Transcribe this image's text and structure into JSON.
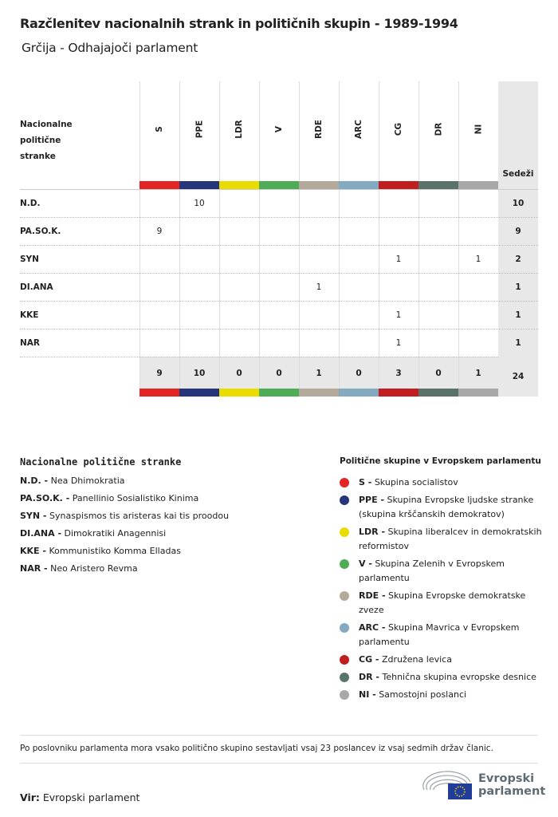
{
  "title": "Razčlenitev nacionalnih strank in političnih skupin - 1989-1994",
  "subtitle": "Grčija - Odhajajoči parlament",
  "table": {
    "row_header": "Nacionalne politične stranke",
    "seats_header": "Sedeži",
    "groups": [
      {
        "code": "S",
        "color": "#e32624"
      },
      {
        "code": "PPE",
        "color": "#27357b"
      },
      {
        "code": "LDR",
        "color": "#ebdc00"
      },
      {
        "code": "V",
        "color": "#4fac56"
      },
      {
        "code": "RDE",
        "color": "#b3aa9c"
      },
      {
        "code": "ARC",
        "color": "#83aac0"
      },
      {
        "code": "CG",
        "color": "#c21d1f"
      },
      {
        "code": "DR",
        "color": "#59736a"
      },
      {
        "code": "NI",
        "color": "#a8a8a8"
      }
    ],
    "rows": [
      {
        "party": "N.D.",
        "values": [
          "",
          "10",
          "",
          "",
          "",
          "",
          "",
          "",
          ""
        ],
        "seats": "10"
      },
      {
        "party": "PA.SO.K.",
        "values": [
          "9",
          "",
          "",
          "",
          "",
          "",
          "",
          "",
          ""
        ],
        "seats": "9"
      },
      {
        "party": "SYN",
        "values": [
          "",
          "",
          "",
          "",
          "",
          "",
          "1",
          "",
          "1"
        ],
        "seats": "2"
      },
      {
        "party": "DI.ANA",
        "values": [
          "",
          "",
          "",
          "",
          "1",
          "",
          "",
          "",
          ""
        ],
        "seats": "1"
      },
      {
        "party": "KKE",
        "values": [
          "",
          "",
          "",
          "",
          "",
          "",
          "1",
          "",
          ""
        ],
        "seats": "1"
      },
      {
        "party": "NAR",
        "values": [
          "",
          "",
          "",
          "",
          "",
          "",
          "1",
          "",
          ""
        ],
        "seats": "1"
      }
    ],
    "totals": [
      "9",
      "10",
      "0",
      "0",
      "1",
      "0",
      "3",
      "0",
      "1"
    ],
    "grand_total": "24"
  },
  "legend_parties": {
    "title": "Nacionalne politične stranke",
    "items": [
      {
        "code": "N.D. -",
        "name": "Nea Dhimokratia"
      },
      {
        "code": "PA.SO.K. -",
        "name": "Panellinio Sosialistiko Kinima"
      },
      {
        "code": "SYN -",
        "name": "Synaspismos tis aristeras kai tis proodou"
      },
      {
        "code": "DI.ANA -",
        "name": "Dimokratiki Anagennisi"
      },
      {
        "code": "KKE -",
        "name": "Kommunistiko Komma Elladas"
      },
      {
        "code": "NAR -",
        "name": "Neo Aristero Revma"
      }
    ]
  },
  "legend_groups": {
    "title": "Politične skupine v Evropskem parlamentu",
    "items": [
      {
        "code": "S -",
        "name": "Skupina socialistov"
      },
      {
        "code": "PPE -",
        "name": "Skupina Evropske ljudske stranke (skupina krščanskih demokratov)"
      },
      {
        "code": "LDR -",
        "name": "Skupina liberalcev in demokratskih reformistov"
      },
      {
        "code": "V -",
        "name": "Skupina Zelenih v Evropskem parlamentu"
      },
      {
        "code": "RDE -",
        "name": "Skupina Evropske demokratske zveze"
      },
      {
        "code": "ARC -",
        "name": "Skupina Mavrica v Evropskem parlamentu"
      },
      {
        "code": "CG -",
        "name": "Združena levica"
      },
      {
        "code": "DR -",
        "name": "Tehnična skupina evropske desnice"
      },
      {
        "code": "NI -",
        "name": "Samostojni poslanci"
      }
    ]
  },
  "note": "Po poslovniku parlamenta mora vsako politično skupino sestavljati vsaj 23 poslancev iz vsaj sedmih držav članic.",
  "source": {
    "label": "Vir:",
    "value": "Evropski parlament"
  },
  "logo": {
    "line1": "Evropski",
    "line2": "parlament"
  }
}
